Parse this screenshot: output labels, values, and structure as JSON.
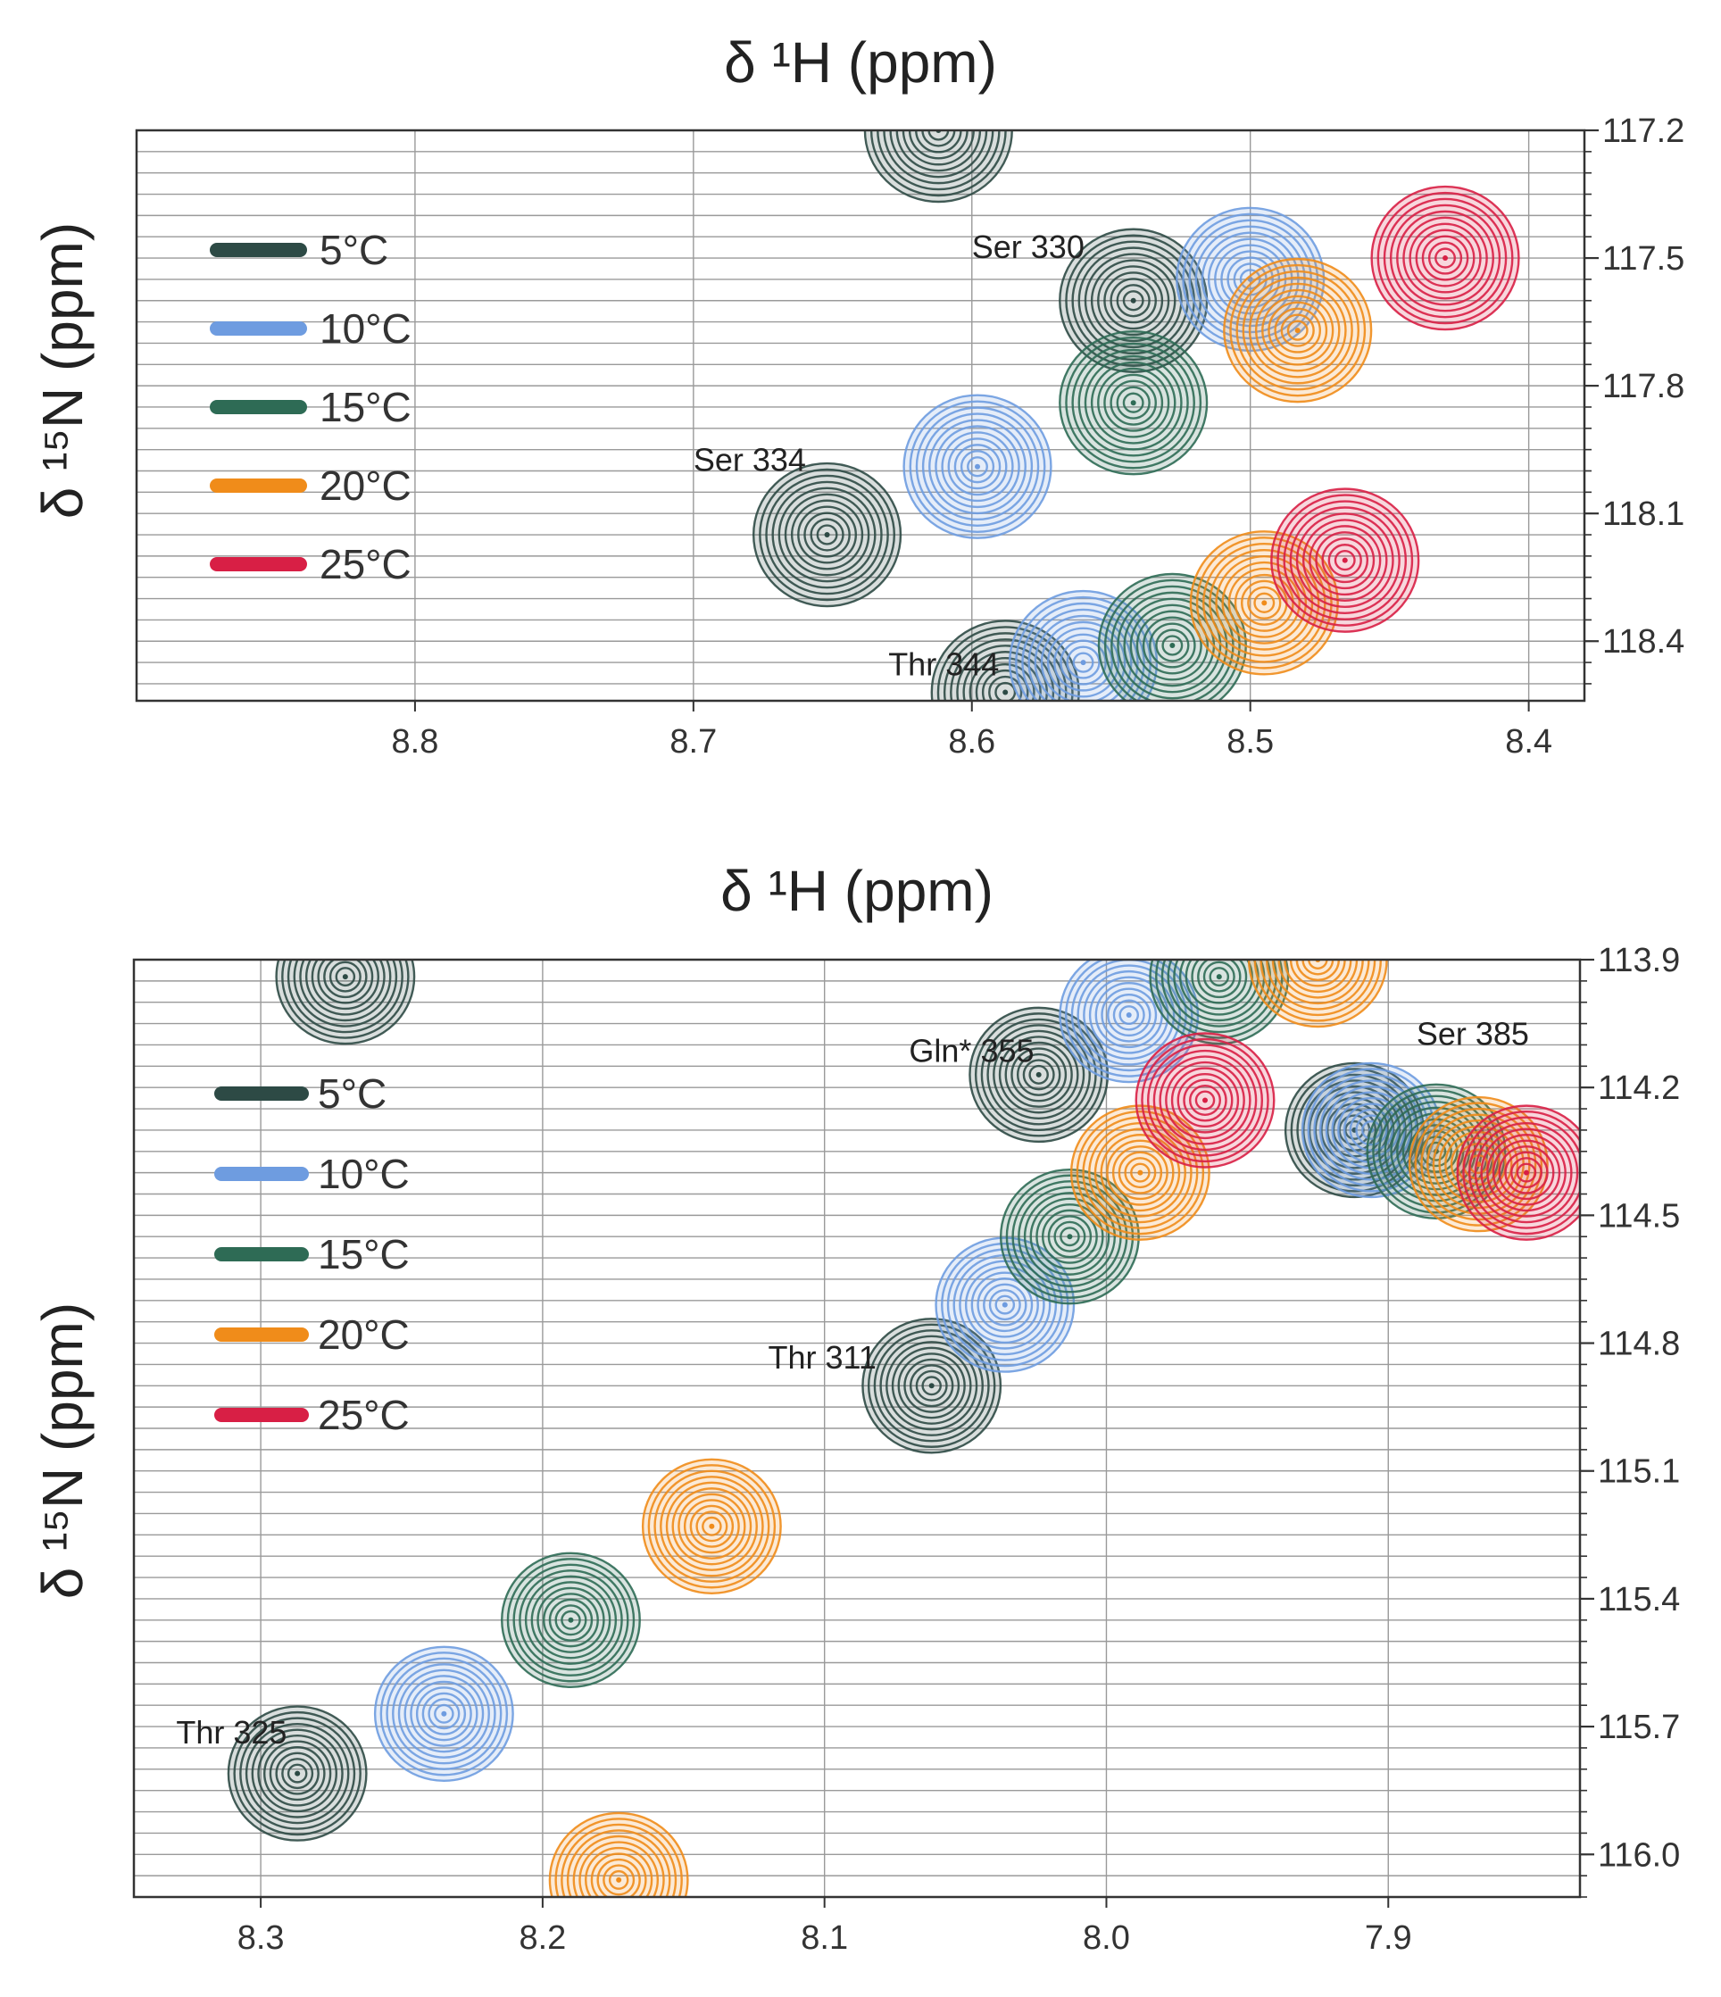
{
  "chart_data": [
    {
      "type": "scatter",
      "title": "δ ¹H (ppm)",
      "xlabel": "δ ¹H (ppm)",
      "ylabel": "δ ¹⁵N (ppm)",
      "xlim": [
        8.9,
        8.38
      ],
      "ylim": [
        117.2,
        118.54
      ],
      "xticks": [
        8.8,
        8.7,
        8.6,
        8.5,
        8.4
      ],
      "xtick_labels": [
        "8.8",
        "8.7",
        "8.6",
        "8.5",
        "8.4"
      ],
      "yticks": [
        117.2,
        117.5,
        117.8,
        118.1,
        118.4
      ],
      "ytick_labels": [
        "117.2",
        "117.5",
        "117.8",
        "118.1",
        "118.4"
      ],
      "grid": true,
      "legend_position": "top-left",
      "legend": [
        {
          "label": "5°C",
          "color": "#2d4a45"
        },
        {
          "label": "10°C",
          "color": "#6e9ce0"
        },
        {
          "label": "15°C",
          "color": "#2e6b55"
        },
        {
          "label": "20°C",
          "color": "#f08c1a"
        },
        {
          "label": "25°C",
          "color": "#d81f45"
        }
      ],
      "annotations": [
        {
          "text": "Ser 330",
          "x": 8.6,
          "y": 117.5
        },
        {
          "text": "Ser 334",
          "x": 8.7,
          "y": 118.0
        },
        {
          "text": "Thr 344",
          "x": 8.63,
          "y": 118.48
        }
      ],
      "series": [
        {
          "name": "5°C",
          "points": [
            {
              "x": 8.612,
              "y": 117.2
            },
            {
              "x": 8.542,
              "y": 117.6
            },
            {
              "x": 8.652,
              "y": 118.15
            },
            {
              "x": 8.588,
              "y": 118.52
            }
          ]
        },
        {
          "name": "10°C",
          "points": [
            {
              "x": 8.5,
              "y": 117.55
            },
            {
              "x": 8.598,
              "y": 117.99
            },
            {
              "x": 8.56,
              "y": 118.45
            }
          ]
        },
        {
          "name": "15°C",
          "points": [
            {
              "x": 8.542,
              "y": 117.84
            },
            {
              "x": 8.528,
              "y": 118.41
            }
          ]
        },
        {
          "name": "20°C",
          "points": [
            {
              "x": 8.483,
              "y": 117.67
            },
            {
              "x": 8.495,
              "y": 118.31
            }
          ]
        },
        {
          "name": "25°C",
          "points": [
            {
              "x": 8.43,
              "y": 117.5
            },
            {
              "x": 8.466,
              "y": 118.21
            }
          ]
        }
      ]
    },
    {
      "type": "scatter",
      "title": "δ ¹H (ppm)",
      "xlabel": "δ ¹H (ppm)",
      "ylabel": "δ ¹⁵N (ppm)",
      "xlim": [
        8.345,
        7.832
      ],
      "ylim": [
        113.9,
        116.1
      ],
      "xticks": [
        8.3,
        8.2,
        8.1,
        8.0,
        7.9
      ],
      "xtick_labels": [
        "8.3",
        "8.2",
        "8.1",
        "8.0",
        "7.9"
      ],
      "yticks": [
        113.9,
        114.2,
        114.5,
        114.8,
        115.1,
        115.4,
        115.7,
        116.0
      ],
      "ytick_labels": [
        "113.9",
        "114.2",
        "114.5",
        "114.8",
        "115.1",
        "115.4",
        "115.7",
        "116.0"
      ],
      "grid": true,
      "legend_position": "top-left",
      "legend": [
        {
          "label": "5°C",
          "color": "#2d4a45"
        },
        {
          "label": "10°C",
          "color": "#6e9ce0"
        },
        {
          "label": "15°C",
          "color": "#2e6b55"
        },
        {
          "label": "20°C",
          "color": "#f08c1a"
        },
        {
          "label": "25°C",
          "color": "#d81f45"
        }
      ],
      "annotations": [
        {
          "text": "Gln* 355",
          "x": 8.07,
          "y": 114.14
        },
        {
          "text": "Ser 385",
          "x": 7.89,
          "y": 114.1
        },
        {
          "text": "Thr 311",
          "x": 8.12,
          "y": 114.86
        },
        {
          "text": "Thr 325",
          "x": 8.33,
          "y": 115.74
        }
      ],
      "series": [
        {
          "name": "5°C",
          "points": [
            {
              "x": 8.27,
              "y": 113.94
            },
            {
              "x": 8.024,
              "y": 114.17
            },
            {
              "x": 7.912,
              "y": 114.3
            },
            {
              "x": 8.062,
              "y": 114.9
            },
            {
              "x": 8.287,
              "y": 115.81
            }
          ]
        },
        {
          "name": "10°C",
          "points": [
            {
              "x": 7.992,
              "y": 114.03
            },
            {
              "x": 7.906,
              "y": 114.3
            },
            {
              "x": 8.036,
              "y": 114.71
            },
            {
              "x": 8.235,
              "y": 115.67
            }
          ]
        },
        {
          "name": "15°C",
          "points": [
            {
              "x": 7.96,
              "y": 113.94
            },
            {
              "x": 7.883,
              "y": 114.35
            },
            {
              "x": 8.013,
              "y": 114.55
            },
            {
              "x": 8.19,
              "y": 115.45
            }
          ]
        },
        {
          "name": "20°C",
          "points": [
            {
              "x": 7.925,
              "y": 113.9
            },
            {
              "x": 7.868,
              "y": 114.38
            },
            {
              "x": 7.988,
              "y": 114.4
            },
            {
              "x": 8.14,
              "y": 115.23
            },
            {
              "x": 8.173,
              "y": 116.06
            }
          ]
        },
        {
          "name": "25°C",
          "points": [
            {
              "x": 7.965,
              "y": 114.23
            },
            {
              "x": 7.851,
              "y": 114.4
            }
          ]
        }
      ]
    }
  ]
}
